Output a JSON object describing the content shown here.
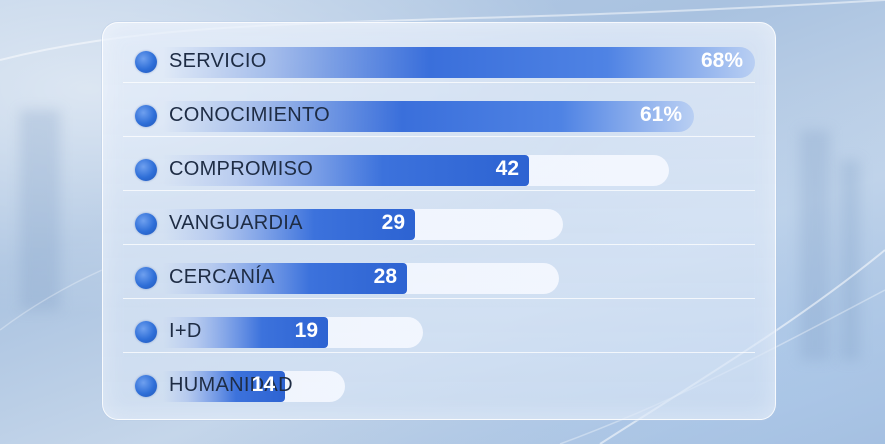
{
  "chart_data": {
    "type": "bar",
    "orientation": "horizontal",
    "categories": [
      "SERVICIO",
      "CONOCIMIENTO",
      "COMPROMISO",
      "VANGUARDIA",
      "CERCANÍA",
      "I+D",
      "HUMANIDAD"
    ],
    "values": [
      68,
      61,
      42,
      29,
      28,
      19,
      14
    ],
    "value_labels": [
      "68%",
      "61%",
      "42",
      "29",
      "28",
      "19",
      "14"
    ],
    "bar_color": "#3c72dc",
    "marker_color": "#2f6fd8"
  }
}
